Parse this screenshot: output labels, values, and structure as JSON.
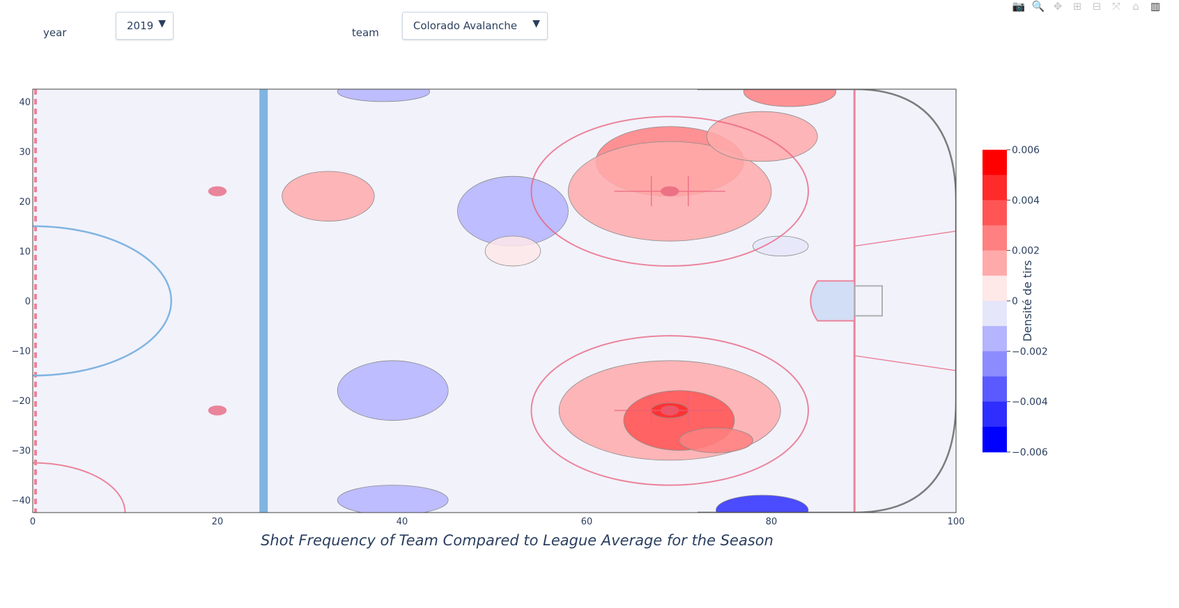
{
  "controls": {
    "year_label": "year",
    "year_value": "2019",
    "team_label": "team",
    "team_value": "Colorado Avalanche",
    "arrow": "▼"
  },
  "modebar": [
    {
      "name": "camera-icon",
      "glyph": "📷"
    },
    {
      "name": "zoom-icon",
      "glyph": "🔍"
    },
    {
      "name": "pan-icon",
      "glyph": "✥"
    },
    {
      "name": "zoom-in-icon",
      "glyph": "⊞"
    },
    {
      "name": "zoom-out-icon",
      "glyph": "⊟"
    },
    {
      "name": "autoscale-icon",
      "glyph": "⤧"
    },
    {
      "name": "home-icon",
      "glyph": "⌂"
    },
    {
      "name": "plotly-logo-icon",
      "glyph": "▥"
    }
  ],
  "chart_data": {
    "type": "heatmap",
    "subtype": "contour",
    "title": "Shot Frequency of Team Compared to League Average for the Season",
    "xlabel": "",
    "ylabel": "",
    "xlim": [
      0,
      100
    ],
    "ylim": [
      -42.5,
      42.5
    ],
    "x_ticks": [
      0,
      20,
      40,
      60,
      80,
      100
    ],
    "y_ticks": [
      40,
      30,
      20,
      10,
      0,
      -10,
      -20,
      -30,
      -40
    ],
    "colorbar": {
      "title": "Densité de tirs",
      "range": [
        -0.006,
        0.006
      ],
      "ticks": [
        0.006,
        0.004,
        0.002,
        0,
        -0.002,
        -0.004,
        -0.006
      ],
      "tick_labels": [
        "0.006",
        "0.004",
        "0.002",
        "0",
        "−0.002",
        "−0.004",
        "−0.006"
      ],
      "colors": [
        "#ff0000",
        "#ff2a2a",
        "#ff5555",
        "#ff8080",
        "#ffaaaa",
        "#fee8e8",
        "#e6e6fa",
        "#b4b4ff",
        "#8c8cff",
        "#5a5aff",
        "#2e2eff",
        "#0000ff"
      ]
    },
    "grid": false,
    "background": "#f2f2fb",
    "hotspots": [
      {
        "x": 69,
        "y": 28,
        "rx": 8,
        "ry": 7,
        "value": 0.003
      },
      {
        "x": 69,
        "y": 22,
        "rx": 11,
        "ry": 10,
        "value": 0.0015
      },
      {
        "x": 69,
        "y": -22,
        "rx": 12,
        "ry": 10,
        "value": 0.0015
      },
      {
        "x": 70,
        "y": -24,
        "rx": 6,
        "ry": 6,
        "value": 0.0035
      },
      {
        "x": 74,
        "y": -28,
        "rx": 4,
        "ry": 2.5,
        "value": 0.003
      },
      {
        "x": 69,
        "y": -22,
        "rx": 2,
        "ry": 1.5,
        "value": 0.005
      },
      {
        "x": 32,
        "y": 21,
        "rx": 5,
        "ry": 5,
        "value": 0.0015
      },
      {
        "x": 82,
        "y": 42,
        "rx": 5,
        "ry": 3,
        "value": 0.0025
      },
      {
        "x": 79,
        "y": 33,
        "rx": 6,
        "ry": 5,
        "value": 0.0015
      },
      {
        "x": 52,
        "y": 18,
        "rx": 6,
        "ry": 7,
        "value": -0.0015
      },
      {
        "x": 39,
        "y": -18,
        "rx": 6,
        "ry": 6,
        "value": -0.001
      },
      {
        "x": 39,
        "y": -40,
        "rx": 6,
        "ry": 3,
        "value": -0.0015
      },
      {
        "x": 79,
        "y": -42,
        "rx": 5,
        "ry": 3,
        "value": -0.004
      },
      {
        "x": 81,
        "y": 11,
        "rx": 3,
        "ry": 2,
        "value": -0.0005
      },
      {
        "x": 38,
        "y": 42,
        "rx": 5,
        "ry": 2,
        "value": -0.001
      },
      {
        "x": 52,
        "y": 10,
        "rx": 3,
        "ry": 3,
        "value": 0.0008
      }
    ]
  }
}
